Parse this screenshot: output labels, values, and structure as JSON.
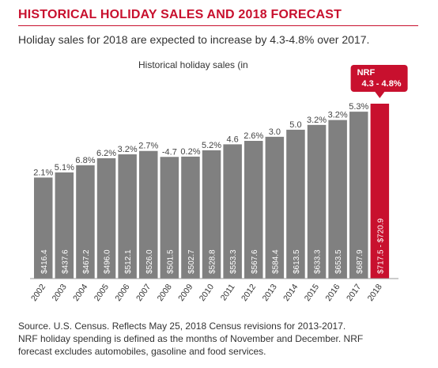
{
  "title": "HISTORICAL HOLIDAY SALES AND 2018 FORECAST",
  "subtitle": "Holiday sales for 2018 are expected to increase by 4.3-4.8% over 2017.",
  "source_lines": [
    "Source. U.S. Census. Reflects May 25, 2018 Census revisions for 2013-2017.",
    "NRF holiday spending is defined as the months of November and December. NRF",
    "forecast excludes automobiles, gasoline and food services."
  ],
  "colors": {
    "bar": "#808080",
    "forecast": "#c8102e",
    "title": "#c8102e",
    "axis": "#999999"
  },
  "chart_data": {
    "type": "bar",
    "title": "Historical holiday sales (in",
    "categories": [
      "2002",
      "2003",
      "2004",
      "2005",
      "2006",
      "2007",
      "2008",
      "2009",
      "2010",
      "2011",
      "2012",
      "2013",
      "2014",
      "2015",
      "2016",
      "2017",
      "2018"
    ],
    "values": [
      416.4,
      437.6,
      467.2,
      496.0,
      512.1,
      526.0,
      501.5,
      502.7,
      528.8,
      553.3,
      567.6,
      584.4,
      613.5,
      633.3,
      653.5,
      687.9,
      720.9
    ],
    "value_labels": [
      "$416.4",
      "$437.6",
      "$467.2",
      "$496.0",
      "$512.1",
      "$526.0",
      "$501.5",
      "$502.7",
      "$528.8",
      "$553.3",
      "$567.6",
      "$584.4",
      "$613.5",
      "$633.3",
      "$653.5",
      "$687.9",
      "$717.5 - $720.9"
    ],
    "growth_labels": [
      "2.1%",
      "5.1%",
      "6.8%",
      "6.2%",
      "3.2%",
      "2.7%",
      "-4.7",
      "0.2%",
      "5.2%",
      "4.6",
      "2.6%",
      "3.0",
      "5.0",
      "3.2%",
      "3.2%",
      "5.3%",
      ""
    ],
    "forecast_index": 16,
    "forecast_callout": {
      "line1": "NRF",
      "line2": "4.3 - 4.8%"
    },
    "ylim": [
      0,
      720.9
    ],
    "grid": false
  }
}
